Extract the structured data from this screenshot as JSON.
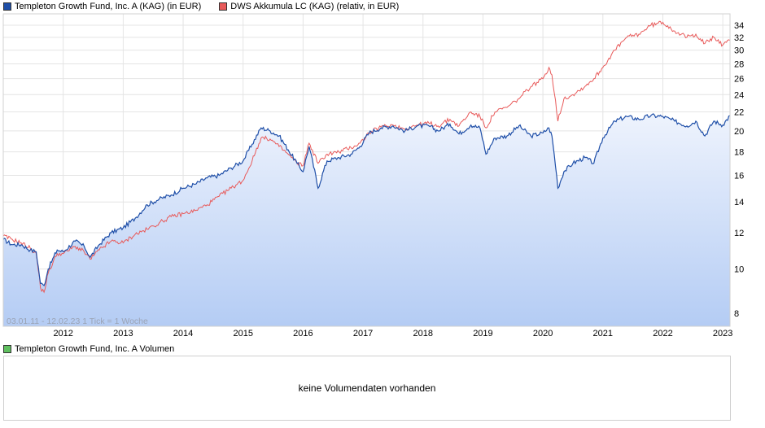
{
  "legend": {
    "fund_label": "Templeton Growth Fund, Inc.  A (KAG) (in EUR)",
    "compare_label": "DWS Akkumula LC (KAG) (relativ, in EUR)"
  },
  "range_note": "03.01.11 - 12.02.23    1 Tick = 1 Woche",
  "volume": {
    "legend_label": "Templeton Growth Fund, Inc.  A Volumen",
    "empty_message": "keine Volumendaten vorhanden"
  },
  "colors": {
    "fund_line": "#1f4fa8",
    "compare_line": "#e85a5a",
    "fill_top": "#eef3fd",
    "fill_bottom": "#b4ccf4",
    "volume_swatch": "#5fbf5f"
  },
  "chart_data": {
    "type": "line",
    "y_scale": "log",
    "ylim": [
      7.5,
      36
    ],
    "y_ticks": [
      8,
      10,
      12,
      14,
      16,
      18,
      20,
      22,
      24,
      26,
      28,
      30,
      32,
      34
    ],
    "x_range": [
      2011.0,
      2023.12
    ],
    "x_ticks": [
      "2012",
      "2013",
      "2014",
      "2015",
      "2016",
      "2017",
      "2018",
      "2019",
      "2020",
      "2021",
      "2022",
      "2023"
    ],
    "x_tick_positions": [
      2012,
      2013,
      2014,
      2015,
      2016,
      2017,
      2018,
      2019,
      2020,
      2021,
      2022,
      2023
    ],
    "grid": true,
    "series": [
      {
        "name": "Templeton Growth Fund, Inc.  A (KAG) (in EUR)",
        "x": [
          2011.0,
          2011.15,
          2011.3,
          2011.45,
          2011.55,
          2011.62,
          2011.68,
          2011.75,
          2011.9,
          2012.0,
          2012.2,
          2012.35,
          2012.45,
          2012.6,
          2012.8,
          2013.0,
          2013.2,
          2013.4,
          2013.6,
          2013.8,
          2014.0,
          2014.2,
          2014.4,
          2014.6,
          2014.8,
          2015.0,
          2015.15,
          2015.3,
          2015.45,
          2015.6,
          2015.75,
          2015.9,
          2016.0,
          2016.1,
          2016.25,
          2016.4,
          2016.6,
          2016.8,
          2016.95,
          2017.1,
          2017.3,
          2017.5,
          2017.7,
          2017.9,
          2018.1,
          2018.25,
          2018.45,
          2018.6,
          2018.8,
          2018.95,
          2019.05,
          2019.2,
          2019.4,
          2019.6,
          2019.8,
          2020.0,
          2020.1,
          2020.15,
          2020.25,
          2020.35,
          2020.5,
          2020.7,
          2020.85,
          2021.0,
          2021.2,
          2021.4,
          2021.6,
          2021.8,
          2022.0,
          2022.2,
          2022.4,
          2022.55,
          2022.7,
          2022.85,
          2023.0,
          2023.12
        ],
        "values": [
          11.6,
          11.3,
          11.3,
          11.0,
          10.9,
          9.3,
          9.2,
          10.0,
          11.0,
          10.9,
          11.5,
          11.2,
          10.6,
          11.3,
          12.0,
          12.3,
          12.9,
          13.8,
          14.2,
          14.5,
          15.0,
          15.3,
          15.8,
          16.0,
          16.6,
          17.2,
          18.7,
          20.3,
          20.0,
          19.5,
          18.2,
          17.0,
          16.3,
          18.5,
          15.0,
          17.2,
          17.5,
          17.8,
          18.5,
          19.8,
          20.3,
          20.5,
          20.0,
          20.5,
          20.5,
          20.0,
          20.7,
          19.7,
          20.6,
          20.3,
          17.8,
          19.3,
          19.5,
          20.5,
          19.5,
          19.8,
          20.3,
          19.5,
          15.0,
          16.3,
          17.0,
          17.5,
          17.0,
          19.3,
          21.0,
          21.5,
          21.2,
          21.6,
          21.5,
          21.0,
          20.5,
          21.0,
          19.5,
          21.0,
          20.6,
          21.6
        ]
      },
      {
        "name": "DWS Akkumula LC (KAG) (relativ, in EUR)",
        "x": [
          2011.0,
          2011.15,
          2011.3,
          2011.45,
          2011.55,
          2011.62,
          2011.68,
          2011.75,
          2011.9,
          2012.0,
          2012.2,
          2012.35,
          2012.45,
          2012.6,
          2012.8,
          2013.0,
          2013.2,
          2013.4,
          2013.6,
          2013.8,
          2014.0,
          2014.2,
          2014.4,
          2014.6,
          2014.8,
          2015.0,
          2015.15,
          2015.3,
          2015.45,
          2015.6,
          2015.75,
          2015.9,
          2016.0,
          2016.1,
          2016.25,
          2016.4,
          2016.6,
          2016.8,
          2016.95,
          2017.1,
          2017.3,
          2017.5,
          2017.7,
          2017.9,
          2018.1,
          2018.25,
          2018.45,
          2018.6,
          2018.8,
          2018.95,
          2019.05,
          2019.2,
          2019.4,
          2019.6,
          2019.8,
          2020.0,
          2020.1,
          2020.15,
          2020.25,
          2020.35,
          2020.5,
          2020.7,
          2020.85,
          2021.0,
          2021.2,
          2021.4,
          2021.6,
          2021.8,
          2022.0,
          2022.2,
          2022.4,
          2022.55,
          2022.7,
          2022.85,
          2023.0,
          2023.12
        ],
        "values": [
          11.8,
          11.6,
          11.4,
          11.1,
          10.8,
          9.1,
          8.9,
          9.8,
          10.8,
          10.8,
          11.2,
          10.9,
          10.5,
          11.0,
          11.5,
          11.4,
          11.9,
          12.2,
          12.6,
          13.0,
          13.2,
          13.4,
          13.8,
          14.4,
          15.0,
          15.6,
          17.2,
          19.3,
          19.2,
          18.5,
          17.8,
          17.0,
          16.8,
          18.8,
          17.0,
          17.8,
          18.0,
          18.4,
          18.8,
          19.8,
          20.4,
          20.6,
          20.2,
          20.6,
          20.8,
          20.5,
          21.2,
          20.5,
          22.0,
          21.5,
          20.3,
          22.0,
          22.5,
          23.5,
          25.0,
          26.0,
          27.5,
          26.5,
          21.0,
          23.5,
          24.0,
          25.0,
          26.0,
          27.5,
          30.0,
          32.0,
          32.5,
          34.0,
          34.5,
          33.0,
          32.0,
          32.5,
          31.0,
          32.0,
          30.8,
          31.5
        ]
      }
    ]
  }
}
